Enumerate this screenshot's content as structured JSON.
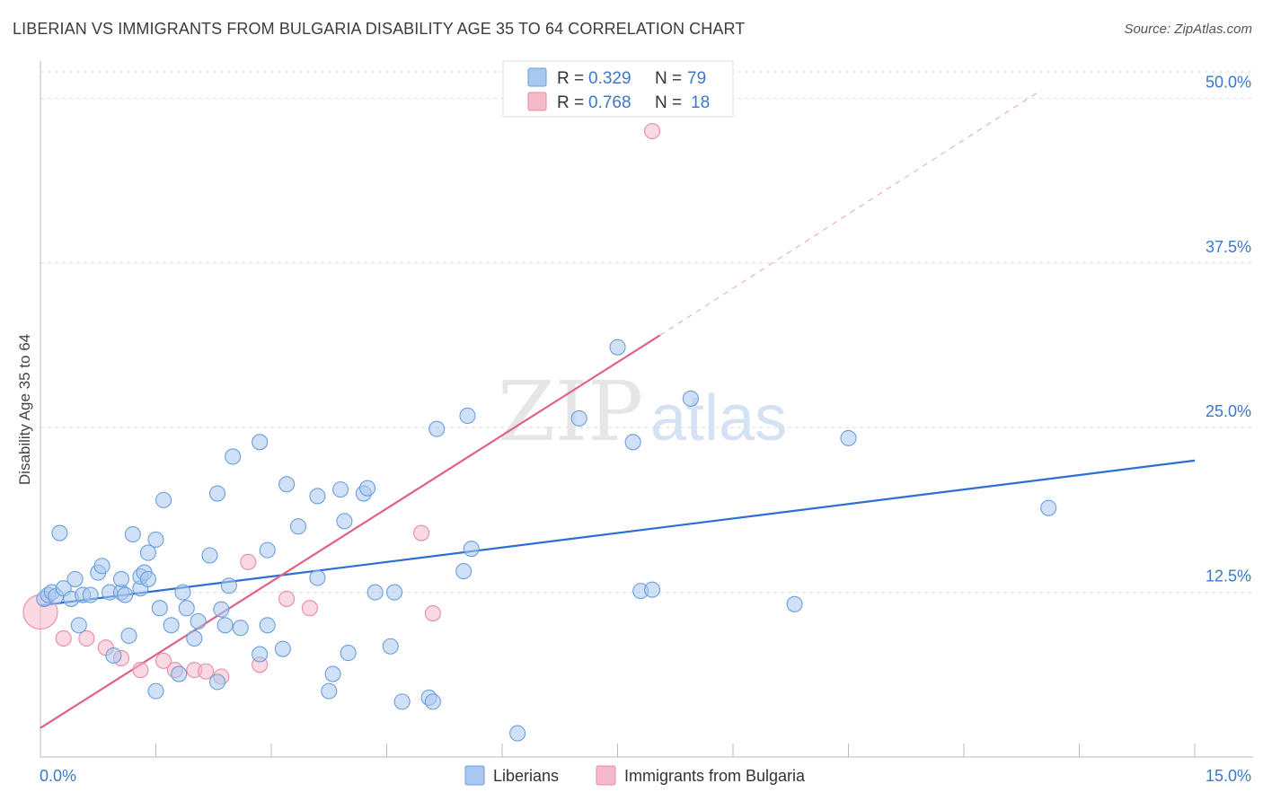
{
  "header": {
    "title": "LIBERIAN VS IMMIGRANTS FROM BULGARIA DISABILITY AGE 35 TO 64 CORRELATION CHART",
    "source": "Source: ZipAtlas.com"
  },
  "watermark": {
    "zip": "ZIP",
    "atlas": "atlas"
  },
  "colors": {
    "blue_fill": "#a9c8f0",
    "blue_stroke": "#6a9fdc",
    "blue_line": "#2b6fd1",
    "pink_fill": "#f6b9ca",
    "pink_stroke": "#e88aa8",
    "pink_line": "#e0608a",
    "tick_text": "#3b78c8",
    "grid": "#dddddd"
  },
  "legend": {
    "r_label": "R =",
    "n_label": "N =",
    "entries": [
      {
        "r": "0.329",
        "n": "79"
      },
      {
        "r": "0.768",
        "n": "18"
      }
    ]
  },
  "chart_data": {
    "type": "scatter",
    "title": "LIBERIAN VS IMMIGRANTS FROM BULGARIA DISABILITY AGE 35 TO 64 CORRELATION CHART",
    "xlabel": "",
    "ylabel": "Disability Age 35 to 64",
    "xlim": [
      0,
      15
    ],
    "ylim": [
      0,
      52
    ],
    "x_tick_labels": [
      "0.0%",
      "15.0%"
    ],
    "y_ticks": [
      12.5,
      25.0,
      37.5,
      50.0
    ],
    "y_tick_labels": [
      "12.5%",
      "25.0%",
      "37.5%",
      "50.0%"
    ],
    "legend_position": "bottom-center",
    "series": [
      {
        "name": "Liberians",
        "trend": {
          "x0": 0,
          "y0": 11.5,
          "x1": 15,
          "y1": 22.5,
          "dashed_to": null
        },
        "points": [
          [
            0.05,
            12.0
          ],
          [
            0.1,
            12.3
          ],
          [
            0.15,
            12.5
          ],
          [
            0.2,
            12.2
          ],
          [
            0.25,
            17.0
          ],
          [
            0.3,
            12.8
          ],
          [
            0.4,
            12.0
          ],
          [
            0.45,
            13.5
          ],
          [
            0.5,
            10.0
          ],
          [
            0.55,
            12.3
          ],
          [
            0.65,
            12.3
          ],
          [
            0.75,
            14.0
          ],
          [
            0.8,
            14.5
          ],
          [
            0.9,
            12.5
          ],
          [
            0.95,
            7.7
          ],
          [
            1.05,
            12.5
          ],
          [
            1.05,
            13.5
          ],
          [
            1.1,
            12.3
          ],
          [
            1.15,
            9.2
          ],
          [
            1.2,
            16.9
          ],
          [
            1.3,
            12.8
          ],
          [
            1.3,
            13.7
          ],
          [
            1.35,
            14.0
          ],
          [
            1.4,
            13.5
          ],
          [
            1.4,
            15.5
          ],
          [
            1.5,
            5.0
          ],
          [
            1.5,
            16.5
          ],
          [
            1.55,
            11.3
          ],
          [
            1.6,
            19.5
          ],
          [
            1.7,
            10.0
          ],
          [
            1.8,
            6.3
          ],
          [
            1.85,
            12.5
          ],
          [
            1.9,
            11.3
          ],
          [
            2.0,
            9.0
          ],
          [
            2.05,
            10.3
          ],
          [
            2.2,
            15.3
          ],
          [
            2.3,
            20.0
          ],
          [
            2.3,
            5.7
          ],
          [
            2.35,
            11.2
          ],
          [
            2.4,
            10.0
          ],
          [
            2.45,
            13.0
          ],
          [
            2.5,
            22.8
          ],
          [
            2.6,
            9.8
          ],
          [
            2.85,
            7.8
          ],
          [
            2.85,
            23.9
          ],
          [
            2.95,
            15.7
          ],
          [
            2.95,
            10.0
          ],
          [
            3.15,
            8.2
          ],
          [
            3.2,
            20.7
          ],
          [
            3.35,
            17.5
          ],
          [
            3.6,
            19.8
          ],
          [
            3.6,
            13.6
          ],
          [
            3.75,
            5.0
          ],
          [
            3.8,
            6.3
          ],
          [
            3.9,
            20.3
          ],
          [
            3.95,
            17.9
          ],
          [
            4.0,
            7.9
          ],
          [
            4.2,
            20.0
          ],
          [
            4.25,
            20.4
          ],
          [
            4.35,
            12.5
          ],
          [
            4.55,
            8.4
          ],
          [
            4.6,
            12.5
          ],
          [
            4.7,
            4.2
          ],
          [
            5.05,
            4.5
          ],
          [
            5.1,
            4.2
          ],
          [
            5.15,
            24.9
          ],
          [
            5.5,
            14.1
          ],
          [
            5.55,
            25.9
          ],
          [
            5.6,
            15.8
          ],
          [
            6.2,
            1.8
          ],
          [
            7.0,
            25.7
          ],
          [
            7.5,
            31.1
          ],
          [
            7.7,
            23.9
          ],
          [
            7.8,
            12.6
          ],
          [
            7.95,
            12.7
          ],
          [
            8.45,
            27.2
          ],
          [
            9.8,
            11.6
          ],
          [
            10.5,
            24.2
          ],
          [
            13.1,
            18.9
          ]
        ]
      },
      {
        "name": "Immigrants from Bulgaria",
        "trend": {
          "x0": 0,
          "y0": 2.2,
          "x1": 8.05,
          "y1": 32.0,
          "dashed_to": {
            "x": 13.0,
            "y": 50.6
          }
        },
        "points": [
          [
            0.0,
            11.0
          ],
          [
            0.3,
            9.0
          ],
          [
            0.6,
            9.0
          ],
          [
            0.85,
            8.3
          ],
          [
            1.05,
            7.5
          ],
          [
            1.3,
            6.6
          ],
          [
            1.6,
            7.3
          ],
          [
            1.75,
            6.6
          ],
          [
            2.0,
            6.6
          ],
          [
            2.15,
            6.5
          ],
          [
            2.35,
            6.1
          ],
          [
            2.7,
            14.8
          ],
          [
            2.85,
            7.0
          ],
          [
            3.2,
            12.0
          ],
          [
            3.5,
            11.3
          ],
          [
            4.95,
            17.0
          ],
          [
            5.1,
            10.9
          ],
          [
            7.95,
            47.5
          ]
        ]
      }
    ]
  }
}
